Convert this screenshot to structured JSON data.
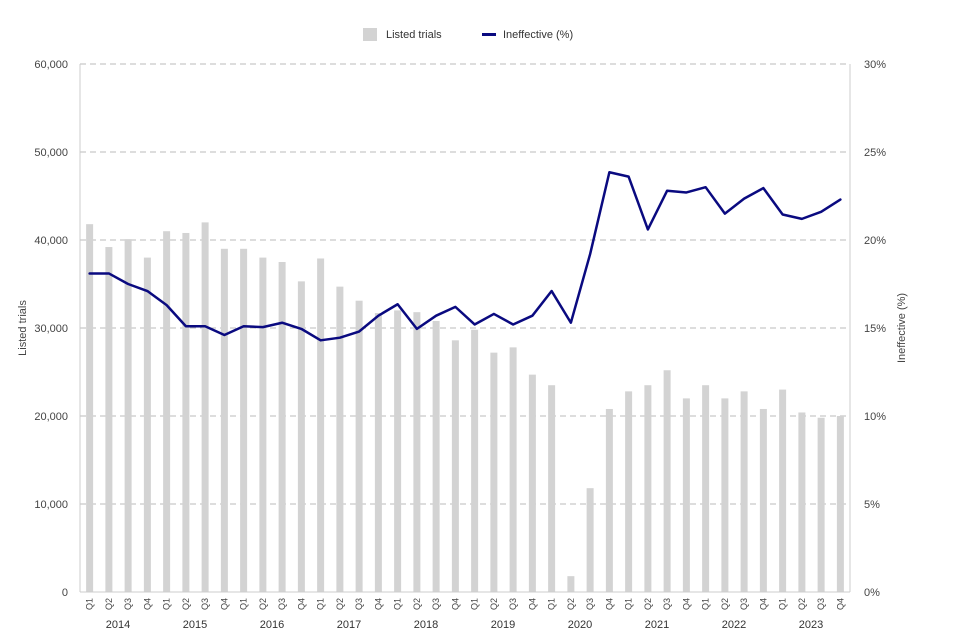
{
  "chart_data": {
    "type": "bar",
    "legend": {
      "position": "top-center"
    },
    "categories": [
      "2014 Q1",
      "2014 Q2",
      "2014 Q3",
      "2014 Q4",
      "2015 Q1",
      "2015 Q2",
      "2015 Q3",
      "2015 Q4",
      "2016 Q1",
      "2016 Q2",
      "2016 Q3",
      "2016 Q4",
      "2017 Q1",
      "2017 Q2",
      "2017 Q3",
      "2017 Q4",
      "2018 Q1",
      "2018 Q2",
      "2018 Q3",
      "2018 Q4",
      "2019 Q1",
      "2019 Q2",
      "2019 Q3",
      "2019 Q4",
      "2020 Q1",
      "2020 Q2",
      "2020 Q3",
      "2020 Q4",
      "2021 Q1",
      "2021 Q2",
      "2021 Q3",
      "2021 Q4",
      "2022 Q1",
      "2022 Q2",
      "2022 Q3",
      "2022 Q4",
      "2023 Q1",
      "2023 Q2",
      "2023 Q3",
      "2023 Q4"
    ],
    "quarter_labels": [
      "Q1",
      "Q2",
      "Q3",
      "Q4"
    ],
    "years": [
      "2014",
      "2015",
      "2016",
      "2017",
      "2018",
      "2019",
      "2020",
      "2021",
      "2022",
      "2023"
    ],
    "series": [
      {
        "name": "Listed trials",
        "type": "bar",
        "axis": "left",
        "color": "#d3d3d3",
        "values": [
          41800,
          39200,
          40100,
          38000,
          41000,
          40800,
          42000,
          39000,
          39000,
          38000,
          37500,
          35300,
          37900,
          34700,
          33100,
          31700,
          32000,
          31800,
          30800,
          28600,
          29800,
          27200,
          27800,
          24700,
          23500,
          1800,
          11800,
          20800,
          22800,
          23500,
          25200,
          22000,
          23500,
          22000,
          22800,
          20800,
          23000,
          20400,
          19800,
          20000
        ]
      },
      {
        "name": "Ineffective (%)",
        "type": "line",
        "axis": "right",
        "color": "#0a0a80",
        "values": [
          18.1,
          18.1,
          17.5,
          17.1,
          16.3,
          15.1,
          15.1,
          14.6,
          15.1,
          15.05,
          15.3,
          14.95,
          14.3,
          14.45,
          14.8,
          15.7,
          16.35,
          14.95,
          15.7,
          16.2,
          15.2,
          15.8,
          15.2,
          15.7,
          17.1,
          15.3,
          19.2,
          23.85,
          23.6,
          20.6,
          22.8,
          22.7,
          23.0,
          21.5,
          22.35,
          22.95,
          21.45,
          21.2,
          21.6,
          22.3
        ]
      }
    ],
    "y_left": {
      "label": "Listed trials",
      "range": [
        0,
        60000
      ],
      "ticks": [
        0,
        10000,
        20000,
        30000,
        40000,
        50000,
        60000
      ],
      "tick_labels": [
        "0",
        "10,000",
        "20,000",
        "30,000",
        "40,000",
        "50,000",
        "60,000"
      ]
    },
    "y_right": {
      "label": "Ineffective (%)",
      "range": [
        0,
        30
      ],
      "ticks": [
        0,
        5,
        10,
        15,
        20,
        25,
        30
      ],
      "tick_labels": [
        "0%",
        "5%",
        "10%",
        "15%",
        "20%",
        "25%",
        "30%"
      ]
    },
    "grid": true,
    "grid_color": "#bbbbbb"
  }
}
